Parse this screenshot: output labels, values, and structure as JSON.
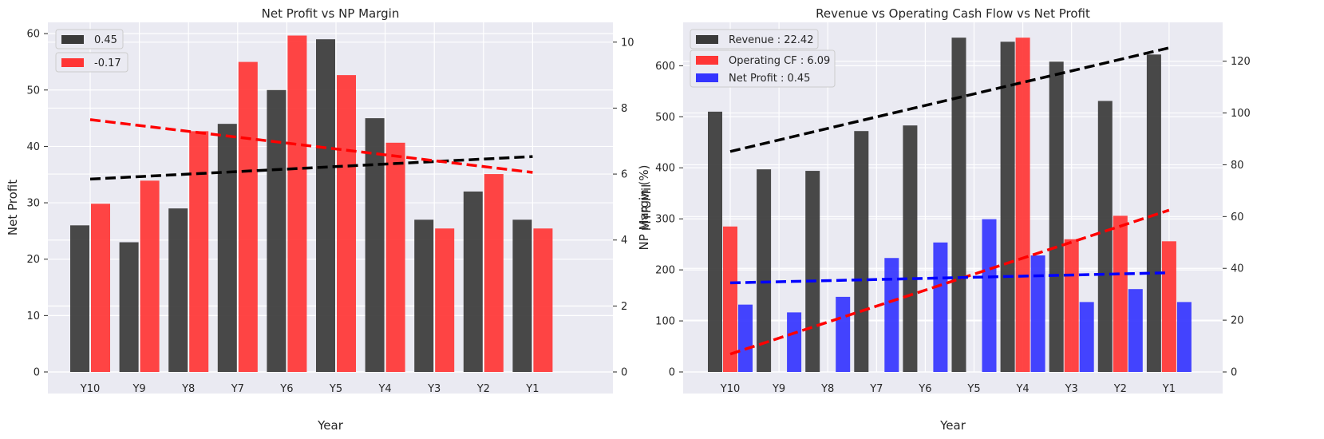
{
  "colors": {
    "background": "#ffffff",
    "plot_bg": "#eaeaf2",
    "grid": "#ffffff",
    "dark": "#3a3a3a",
    "red": "#ff3535",
    "blue": "#3434ff"
  },
  "chart_data": [
    {
      "type": "bar",
      "title": "Net Profit vs NP Margin",
      "xlabel": "Year",
      "ylabel": "Net Profit",
      "y2label": "NP Margin (%)",
      "categories": [
        "Y10",
        "Y9",
        "Y8",
        "Y7",
        "Y6",
        "Y5",
        "Y4",
        "Y3",
        "Y2",
        "Y1"
      ],
      "ylim": [
        0,
        62
      ],
      "yticks": [
        0,
        10,
        20,
        30,
        40,
        50,
        60
      ],
      "y2lim": [
        0,
        10.6
      ],
      "y2ticks": [
        0,
        2,
        4,
        6,
        8,
        10
      ],
      "grid": true,
      "legend_position": "top-left",
      "series": [
        {
          "name": "0.45",
          "axis": "left",
          "color": "#3a3a3a",
          "values": [
            26,
            23,
            29,
            44,
            50,
            59,
            45,
            27,
            32,
            27
          ]
        },
        {
          "name": "-0.17",
          "axis": "right",
          "color": "#ff3535",
          "values": [
            5.1,
            5.8,
            7.3,
            9.4,
            10.2,
            9.0,
            6.95,
            4.35,
            6.0,
            4.35
          ]
        }
      ],
      "trendlines": [
        {
          "axis": "left",
          "color": "#000000",
          "from": 34.2,
          "to": 38.2
        },
        {
          "axis": "right",
          "color": "#ff0000",
          "from": 7.65,
          "to": 6.05
        }
      ]
    },
    {
      "type": "bar",
      "title": "Revenue vs Operating Cash Flow vs Net Profit",
      "xlabel": "Year",
      "ylabel": "MYR Mil",
      "categories": [
        "Y10",
        "Y9",
        "Y8",
        "Y7",
        "Y6",
        "Y5",
        "Y4",
        "Y3",
        "Y2",
        "Y1"
      ],
      "ylim": [
        0,
        685
      ],
      "yticks": [
        0,
        100,
        200,
        300,
        400,
        500,
        600
      ],
      "y2lim": [
        0,
        135
      ],
      "y2ticks": [
        0,
        20,
        40,
        60,
        80,
        100,
        120
      ],
      "grid": true,
      "legend_position": "top-left",
      "series": [
        {
          "name": "Revenue : 22.42",
          "axis": "left",
          "color": "#3a3a3a",
          "values": [
            510,
            397,
            394,
            472,
            483,
            655,
            647,
            608,
            531,
            622
          ]
        },
        {
          "name": "Operating CF : 6.09",
          "axis": "left",
          "color": "#ff3535",
          "values": [
            285,
            null,
            null,
            null,
            null,
            null,
            655,
            260,
            306,
            256
          ]
        },
        {
          "name": "Net Profit : 0.45",
          "axis": "right",
          "color": "#3434ff",
          "values": [
            26,
            23,
            29,
            44,
            50,
            59,
            45,
            27,
            32,
            27
          ]
        }
      ],
      "trendlines": [
        {
          "axis": "left",
          "color": "#000000",
          "from": 432,
          "to": 635
        },
        {
          "axis": "left",
          "color": "#ff0000",
          "from": 35,
          "to": 317
        },
        {
          "axis": "right",
          "color": "#0000ff",
          "from": 34.4,
          "to": 38.3
        }
      ]
    }
  ]
}
